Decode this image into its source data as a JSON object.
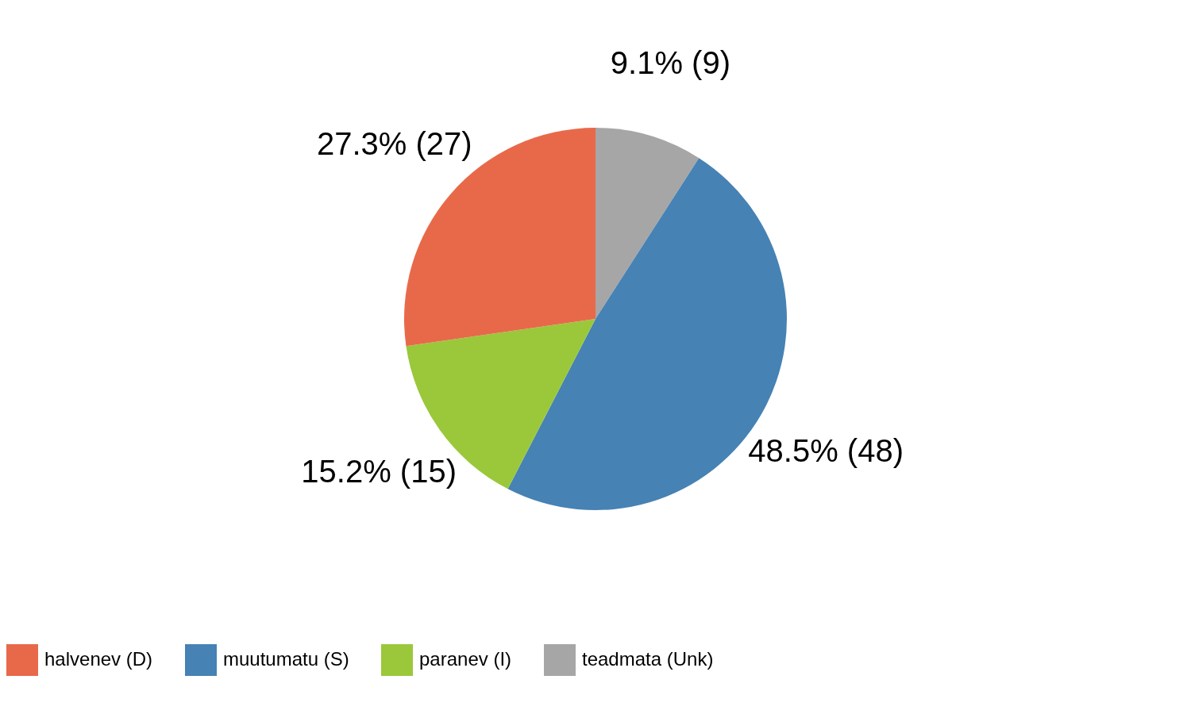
{
  "chart_data": {
    "type": "pie",
    "categories": [
      "teadmata (Unk)",
      "muutumatu (S)",
      "paranev (I)",
      "halvenev (D)"
    ],
    "values": [
      9,
      48,
      15,
      27
    ],
    "colors": [
      "#a6a6a6",
      "#4682b4",
      "#9ac83a",
      "#e8694a"
    ],
    "value_labels": [
      "9.1% (9)",
      "48.5% (48)",
      "15.2% (15)",
      "27.3% (27)"
    ],
    "legend": "bottom"
  }
}
